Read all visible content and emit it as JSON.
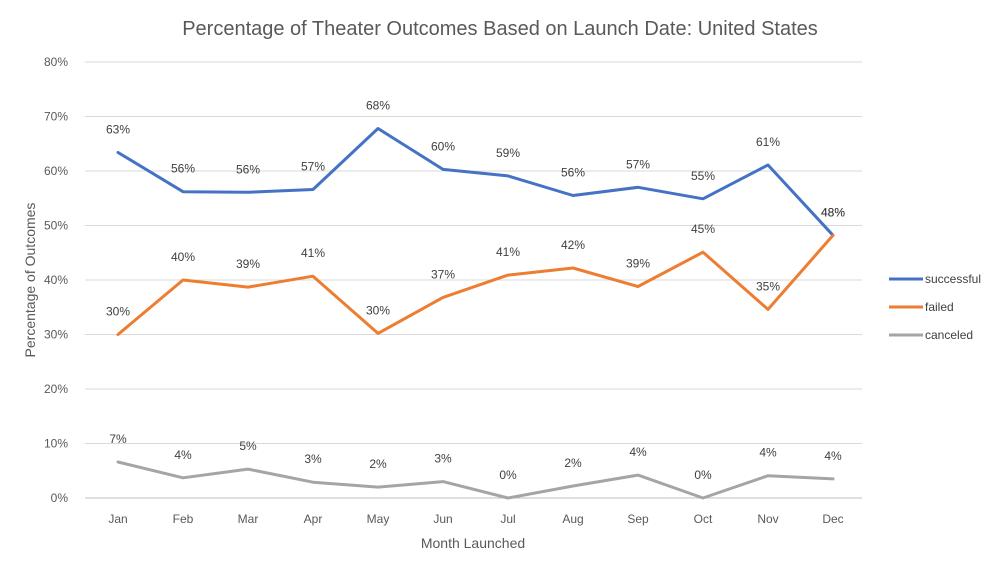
{
  "chart_data": {
    "type": "line",
    "title": "Percentage of Theater Outcomes Based on Launch Date: United States",
    "xlabel": "Month Launched",
    "ylabel": "Percentage of Outcomes",
    "categories": [
      "Jan",
      "Feb",
      "Mar",
      "Apr",
      "May",
      "Jun",
      "Jul",
      "Aug",
      "Sep",
      "Oct",
      "Nov",
      "Dec"
    ],
    "ylim": [
      0,
      80
    ],
    "yticks": [
      "0%",
      "10%",
      "20%",
      "30%",
      "40%",
      "50%",
      "60%",
      "70%",
      "80%"
    ],
    "ytick_values": [
      0,
      10,
      20,
      30,
      40,
      50,
      60,
      70,
      80
    ],
    "grid": true,
    "legend_position": "right",
    "series": [
      {
        "name": "successful",
        "color": "#4472C4",
        "values": [
          63.4,
          56.2,
          56.1,
          56.6,
          67.8,
          60.3,
          59.1,
          55.5,
          57.0,
          54.9,
          61.1,
          48.2
        ],
        "labels": [
          "63%",
          "56%",
          "56%",
          "57%",
          "68%",
          "60%",
          "59%",
          "56%",
          "57%",
          "55%",
          "61%",
          "48%"
        ]
      },
      {
        "name": "failed",
        "color": "#ED7D31",
        "values": [
          30.0,
          40.0,
          38.7,
          40.7,
          30.2,
          36.8,
          40.9,
          42.2,
          38.8,
          45.1,
          34.6,
          48.2
        ],
        "labels": [
          "30%",
          "40%",
          "39%",
          "41%",
          "30%",
          "37%",
          "41%",
          "42%",
          "39%",
          "45%",
          "35%",
          "48%"
        ]
      },
      {
        "name": "canceled",
        "color": "#A5A5A5",
        "values": [
          6.6,
          3.7,
          5.3,
          2.9,
          2.0,
          3.0,
          0.0,
          2.2,
          4.2,
          0.0,
          4.1,
          3.5
        ],
        "labels": [
          "7%",
          "4%",
          "5%",
          "3%",
          "2%",
          "3%",
          "0%",
          "2%",
          "4%",
          "0%",
          "4%",
          "4%"
        ]
      }
    ]
  }
}
